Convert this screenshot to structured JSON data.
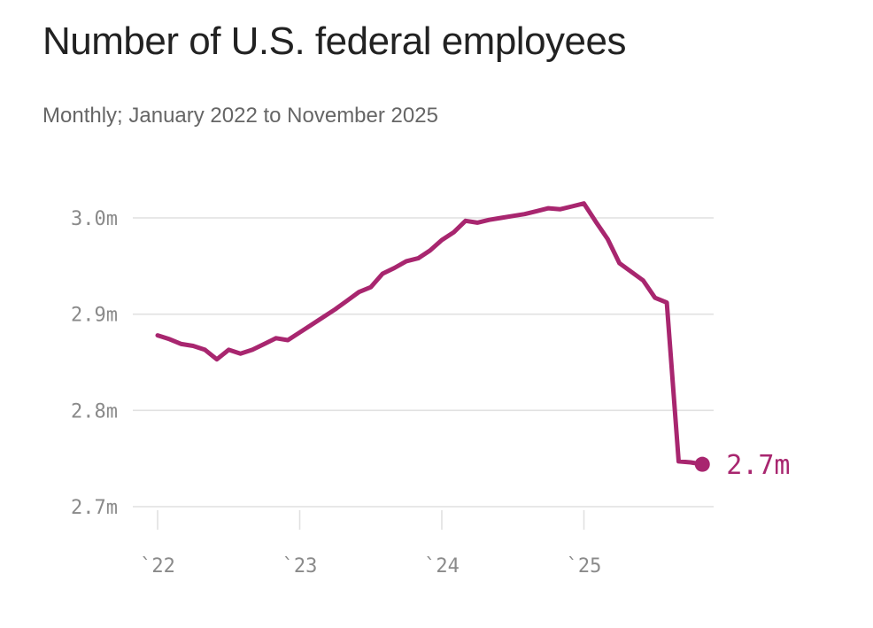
{
  "colors": {
    "line": "#a8266f",
    "grid": "#e1e1e1",
    "axis_text": "#8a8a8a"
  },
  "chart_data": {
    "type": "line",
    "title": "Number of U.S. federal employees",
    "subtitle": "Monthly; January 2022 to November 2025",
    "xlabel": "",
    "ylabel": "",
    "unit": "millions of employees",
    "ylim": [
      2.7,
      3.0
    ],
    "yticks": [
      3.0,
      2.9,
      2.8,
      2.7
    ],
    "ytick_labels": [
      "3.0m",
      "2.9m",
      "2.8m",
      "2.7m"
    ],
    "xticks": [
      "2022-01",
      "2023-01",
      "2024-01",
      "2025-01"
    ],
    "xtick_labels": [
      "`22",
      "`23",
      "`24",
      "`25"
    ],
    "grid": true,
    "legend": "none",
    "end_label": "2.7m",
    "series": [
      {
        "name": "Federal employees",
        "x": [
          "2022-01",
          "2022-02",
          "2022-03",
          "2022-04",
          "2022-05",
          "2022-06",
          "2022-07",
          "2022-08",
          "2022-09",
          "2022-10",
          "2022-11",
          "2022-12",
          "2023-01",
          "2023-02",
          "2023-03",
          "2023-04",
          "2023-05",
          "2023-06",
          "2023-07",
          "2023-08",
          "2023-09",
          "2023-10",
          "2023-11",
          "2023-12",
          "2024-01",
          "2024-02",
          "2024-03",
          "2024-04",
          "2024-05",
          "2024-06",
          "2024-07",
          "2024-08",
          "2024-09",
          "2024-10",
          "2024-11",
          "2024-12",
          "2025-01",
          "2025-02",
          "2025-03",
          "2025-04",
          "2025-05",
          "2025-06",
          "2025-07",
          "2025-08",
          "2025-09",
          "2025-10",
          "2025-11"
        ],
        "values": [
          2.878,
          2.874,
          2.869,
          2.867,
          2.863,
          2.853,
          2.863,
          2.859,
          2.863,
          2.869,
          2.875,
          2.873,
          2.881,
          2.889,
          2.897,
          2.905,
          2.914,
          2.923,
          2.928,
          2.942,
          2.948,
          2.955,
          2.958,
          2.966,
          2.977,
          2.985,
          2.997,
          2.995,
          2.998,
          3.0,
          3.002,
          3.004,
          3.007,
          3.01,
          3.009,
          3.012,
          3.015,
          2.996,
          2.978,
          2.953,
          2.944,
          2.935,
          2.917,
          2.912,
          2.747,
          2.746,
          2.744
        ]
      }
    ]
  }
}
